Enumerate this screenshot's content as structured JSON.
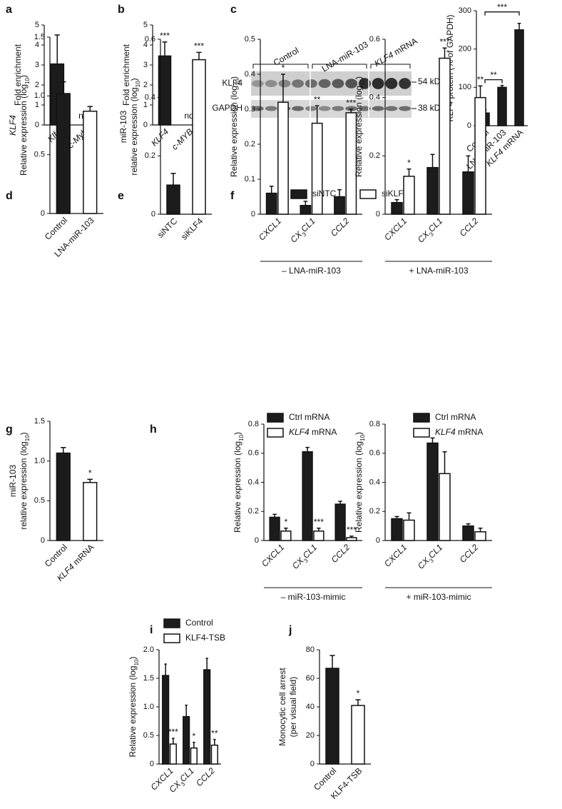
{
  "chart_data": [
    {
      "type": "bar",
      "panel": "a",
      "plots": [
        {
          "ylabel": [
            "Fold enrichment"
          ],
          "categories": [
            [
              {
                "text": "Klf4",
                "style": "italic"
              }
            ],
            [
              {
                "text": "c-Myb",
                "style": "italic"
              }
            ]
          ],
          "ylim": [
            0,
            5
          ],
          "yticks": [
            0,
            1,
            2,
            3,
            4,
            5
          ],
          "series": [
            {
              "colors": [
                "#1c1c1c",
                "#1c1c1c"
              ],
              "values": [
                3.05,
                null
              ],
              "errors": [
                1.45,
                null
              ],
              "annotations": [
                null,
                "nd"
              ]
            }
          ]
        }
      ]
    },
    {
      "type": "bar",
      "panel": "b",
      "plots": [
        {
          "ylabel": [
            "Fold enrichment"
          ],
          "categories": [
            [
              {
                "text": "KLF4",
                "style": "italic"
              }
            ],
            [
              {
                "text": "c-MYB",
                "style": "italic"
              }
            ]
          ],
          "ylim": [
            0,
            5
          ],
          "yticks": [
            0,
            1,
            2,
            3,
            4,
            5
          ],
          "series": [
            {
              "colors": [
                "#1c1c1c",
                "#1c1c1c"
              ],
              "values": [
                3.45,
                null
              ],
              "errors": [
                0.7,
                null
              ],
              "annotations": [
                "***",
                "nd"
              ]
            }
          ]
        }
      ]
    },
    {
      "type": "bar",
      "panel": "c",
      "blot": {
        "lanes": [
          "Control",
          "LNA-miR-103",
          [
            {
              "text": "KLF4",
              "style": "italic"
            },
            " mRNA"
          ]
        ],
        "rows": [
          "KLF4",
          "GAPDH"
        ],
        "sizes": [
          "54 kDa",
          "38 kDa"
        ]
      },
      "plots": [
        {
          "ylabel": [
            "KLF4 protein (% of GAPDH)"
          ],
          "categories": [
            "Control",
            "LNA-miR-103",
            [
              {
                "text": "KLF4",
                "style": "italic"
              },
              " mRNA"
            ]
          ],
          "ylim": [
            0,
            300
          ],
          "yticks": [
            0,
            100,
            200,
            300
          ],
          "series": [
            {
              "colors": [
                "#1c1c1c",
                "#1c1c1c",
                "#1c1c1c"
              ],
              "values": [
                33,
                100,
                250
              ],
              "errors": [
                8,
                5,
                17
              ],
              "annotations": [
                null,
                null,
                null
              ]
            }
          ],
          "brackets": [
            {
              "from": 0,
              "to": 1,
              "label": "**"
            },
            {
              "from": 0,
              "to": 2,
              "label": "***"
            }
          ]
        }
      ]
    },
    {
      "type": "bar",
      "panel": "d",
      "plots": [
        {
          "ylabel": [
            [
              {
                "text": "KLF4",
                "style": "italic"
              }
            ],
            [
              "Relative expression (log",
              {
                "text": "10",
                "style": "sub"
              },
              ")"
            ]
          ],
          "categories": [
            "Control",
            "LNA-miR-103"
          ],
          "ylim": [
            0,
            1.5
          ],
          "yticks": [
            0,
            0.5,
            {
              "value": 1,
              "label": "1.0"
            },
            1.5
          ],
          "series": [
            {
              "colors": [
                "#1c1c1c",
                "#ffffff"
              ],
              "values": [
                1.02,
                0.87
              ],
              "errors": [
                0.1,
                0.04
              ],
              "annotations": [
                null,
                null
              ]
            }
          ]
        }
      ]
    },
    {
      "type": "bar",
      "panel": "e",
      "plots": [
        {
          "ylabel": [
            "miR-103",
            [
              "relative expression (log",
              {
                "text": "10",
                "style": "sub"
              },
              ")"
            ]
          ],
          "categories": [
            "siNTC",
            "siKLF4"
          ],
          "ylim": [
            0,
            0.6
          ],
          "yticks": [
            0,
            0.2,
            0.4,
            0.6
          ],
          "series": [
            {
              "colors": [
                "#1c1c1c",
                "#ffffff"
              ],
              "values": [
                0.1,
                0.53
              ],
              "errors": [
                0.04,
                0.025
              ],
              "annotations": [
                null,
                "***"
              ]
            }
          ]
        }
      ]
    },
    {
      "type": "bar",
      "panel": "f",
      "plots": [
        {
          "legend": [
            "siNTC",
            "siKLF4"
          ],
          "group_label": "– LNA-miR-103",
          "ylabel": [
            [
              "Relative expression (log",
              {
                "text": "10",
                "style": "sub"
              },
              ")"
            ]
          ],
          "categories": [
            [
              {
                "text": "CXCL1",
                "style": "italic"
              }
            ],
            [
              {
                "text": "CX",
                "style": "italic"
              },
              {
                "text": "3",
                "style": "sub"
              },
              {
                "text": "CL1",
                "style": "italic"
              }
            ],
            [
              {
                "text": "CCL2",
                "style": "italic"
              }
            ]
          ],
          "ylim": [
            0,
            0.5
          ],
          "yticks": [
            0,
            0.1,
            0.2,
            0.3,
            0.4,
            0.5
          ],
          "series": [
            {
              "color": "#1c1c1c",
              "values": [
                0.06,
                0.025,
                0.05
              ],
              "errors": [
                0.02,
                0.012,
                0.02
              ],
              "annotations": [
                null,
                null,
                null
              ]
            },
            {
              "color": "#ffffff",
              "values": [
                0.32,
                0.26,
                0.29
              ],
              "errors": [
                0.08,
                0.05,
                0.01
              ],
              "annotations": [
                "*",
                "**",
                "***"
              ]
            }
          ]
        },
        {
          "group_label": "+ LNA-miR-103",
          "ylabel": [
            [
              "Relative expression (log",
              {
                "text": "10",
                "style": "sub"
              },
              ")"
            ]
          ],
          "categories": [
            [
              {
                "text": "CXCL1",
                "style": "italic"
              }
            ],
            [
              {
                "text": "CX",
                "style": "italic"
              },
              {
                "text": "3",
                "style": "sub"
              },
              {
                "text": "CL1",
                "style": "italic"
              }
            ],
            [
              {
                "text": "CCL2",
                "style": "italic"
              }
            ]
          ],
          "ylim": [
            0,
            0.6
          ],
          "yticks": [
            0,
            0.2,
            0.4,
            0.6
          ],
          "series": [
            {
              "color": "#1c1c1c",
              "values": [
                0.04,
                0.16,
                0.145
              ],
              "errors": [
                0.01,
                0.045,
                0.055
              ],
              "annotations": [
                null,
                null,
                null
              ]
            },
            {
              "color": "#ffffff",
              "values": [
                0.13,
                0.535,
                0.4
              ],
              "errors": [
                0.025,
                0.035,
                0.04
              ],
              "annotations": [
                "*",
                "***",
                "**"
              ]
            }
          ]
        }
      ]
    },
    {
      "type": "bar",
      "panel": "g",
      "plots": [
        {
          "ylabel": [
            "miR-103",
            [
              "relative expression (log",
              {
                "text": "10",
                "style": "sub"
              },
              ")"
            ]
          ],
          "categories": [
            "Control",
            [
              {
                "text": "KLF4",
                "style": "italic"
              },
              " mRNA"
            ]
          ],
          "ylim": [
            0,
            1.5
          ],
          "yticks": [
            0,
            0.5,
            {
              "value": 1,
              "label": "1.0"
            },
            1.5
          ],
          "series": [
            {
              "colors": [
                "#1c1c1c",
                "#ffffff"
              ],
              "values": [
                1.1,
                0.73
              ],
              "errors": [
                0.07,
                0.04
              ],
              "annotations": [
                null,
                "*"
              ]
            }
          ]
        }
      ]
    },
    {
      "type": "bar",
      "panel": "h",
      "plots": [
        {
          "legend": [
            "Ctrl mRNA",
            [
              {
                "text": "KLF4",
                "style": "italic"
              },
              " mRNA"
            ]
          ],
          "group_label": "– miR-103-mimic",
          "ylabel": [
            [
              "Relative expression (log",
              {
                "text": "10",
                "style": "sub"
              },
              ")"
            ]
          ],
          "categories": [
            [
              {
                "text": "CXCL1",
                "style": "italic"
              }
            ],
            [
              {
                "text": "CX",
                "style": "italic"
              },
              {
                "text": "3",
                "style": "sub"
              },
              {
                "text": "CL1",
                "style": "italic"
              }
            ],
            [
              {
                "text": "CCL2",
                "style": "italic"
              }
            ]
          ],
          "ylim": [
            0,
            0.8
          ],
          "yticks": [
            0,
            0.2,
            0.4,
            0.6,
            0.8
          ],
          "series": [
            {
              "color": "#1c1c1c",
              "values": [
                0.16,
                0.61,
                0.25
              ],
              "errors": [
                0.02,
                0.03,
                0.02
              ],
              "annotations": [
                null,
                null,
                null
              ]
            },
            {
              "color": "#ffffff",
              "values": [
                0.065,
                0.065,
                0.02
              ],
              "errors": [
                0.02,
                0.02,
                0.01
              ],
              "annotations": [
                "*",
                "***",
                "***"
              ]
            }
          ]
        },
        {
          "legend": [
            "Ctrl mRNA",
            [
              {
                "text": "KLF4",
                "style": "italic"
              },
              " mRNA"
            ]
          ],
          "group_label": "+ miR-103-mimic",
          "ylabel": [
            [
              "Relative expression (log",
              {
                "text": "10",
                "style": "sub"
              },
              ")"
            ]
          ],
          "categories": [
            [
              {
                "text": "CXCL1",
                "style": "italic"
              }
            ],
            [
              {
                "text": "CX",
                "style": "italic"
              },
              {
                "text": "3",
                "style": "sub"
              },
              {
                "text": "CL1",
                "style": "italic"
              }
            ],
            [
              {
                "text": "CCL2",
                "style": "italic"
              }
            ]
          ],
          "ylim": [
            0,
            0.8
          ],
          "yticks": [
            0,
            0.2,
            0.4,
            0.6,
            0.8
          ],
          "series": [
            {
              "color": "#1c1c1c",
              "values": [
                0.15,
                0.67,
                0.1
              ],
              "errors": [
                0.015,
                0.035,
                0.015
              ],
              "annotations": [
                null,
                null,
                null
              ]
            },
            {
              "color": "#ffffff",
              "values": [
                0.14,
                0.46,
                0.06
              ],
              "errors": [
                0.05,
                0.15,
                0.025
              ],
              "annotations": [
                null,
                null,
                null
              ]
            }
          ]
        }
      ]
    },
    {
      "type": "bar",
      "panel": "i",
      "plots": [
        {
          "legend": [
            "Control",
            "KLF4-TSB"
          ],
          "ylabel": [
            [
              "Relative expression (log",
              {
                "text": "10",
                "style": "sub"
              },
              ")"
            ]
          ],
          "categories": [
            [
              {
                "text": "CXCL1",
                "style": "italic"
              }
            ],
            [
              {
                "text": "CX",
                "style": "italic"
              },
              {
                "text": "3",
                "style": "sub"
              },
              {
                "text": "CL1",
                "style": "italic"
              }
            ],
            [
              {
                "text": "CCL2",
                "style": "italic"
              }
            ]
          ],
          "ylim": [
            0,
            2
          ],
          "yticks": [
            0,
            0.5,
            {
              "value": 1,
              "label": "1.0"
            },
            1.5,
            {
              "value": 2,
              "label": "2.0"
            }
          ],
          "series": [
            {
              "color": "#1c1c1c",
              "values": [
                1.55,
                0.83,
                1.65
              ],
              "errors": [
                0.2,
                0.2,
                0.2
              ],
              "annotations": [
                null,
                null,
                null
              ]
            },
            {
              "color": "#ffffff",
              "values": [
                0.35,
                0.28,
                0.33
              ],
              "errors": [
                0.1,
                0.1,
                0.1
              ],
              "annotations": [
                "***",
                "*",
                "**"
              ]
            }
          ]
        }
      ]
    },
    {
      "type": "bar",
      "panel": "j",
      "plots": [
        {
          "ylabel": [
            "Monocytic cell arrest",
            "(per visual field)"
          ],
          "categories": [
            "Control",
            "KLF4-TSB"
          ],
          "ylim": [
            0,
            80
          ],
          "yticks": [
            0,
            20,
            40,
            60,
            80
          ],
          "series": [
            {
              "colors": [
                "#1c1c1c",
                "#ffffff"
              ],
              "values": [
                67,
                41
              ],
              "errors": [
                9,
                4
              ],
              "annotations": [
                null,
                "*"
              ]
            }
          ]
        }
      ]
    }
  ]
}
